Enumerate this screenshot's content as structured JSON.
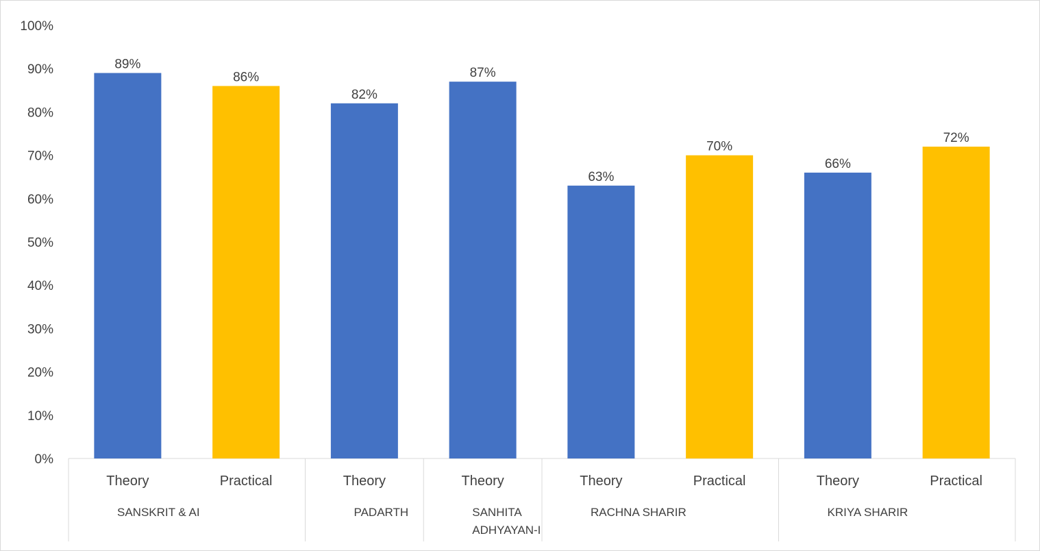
{
  "chart_data": {
    "type": "bar",
    "ylim": [
      0,
      100
    ],
    "y_ticks": [
      "0%",
      "10%",
      "20%",
      "30%",
      "40%",
      "50%",
      "60%",
      "70%",
      "80%",
      "90%",
      "100%"
    ],
    "grid": false,
    "legend": "none",
    "groups": [
      {
        "label_lines": [
          "SANSKRIT & AI"
        ],
        "bars": [
          {
            "category": "Theory",
            "value": 89,
            "label": "89%",
            "color": "#4472C4"
          },
          {
            "category": "Practical",
            "value": 86,
            "label": "86%",
            "color": "#FFC000"
          }
        ]
      },
      {
        "label_lines": [
          "PADARTH"
        ],
        "bars": [
          {
            "category": "Theory",
            "value": 82,
            "label": "82%",
            "color": "#4472C4"
          }
        ]
      },
      {
        "label_lines": [
          "SANHITA",
          "ADHYAYAN-I"
        ],
        "bars": [
          {
            "category": "Theory",
            "value": 87,
            "label": "87%",
            "color": "#4472C4"
          }
        ]
      },
      {
        "label_lines": [
          "RACHNA SHARIR"
        ],
        "bars": [
          {
            "category": "Theory",
            "value": 63,
            "label": "63%",
            "color": "#4472C4"
          },
          {
            "category": "Practical",
            "value": 70,
            "label": "70%",
            "color": "#FFC000"
          }
        ]
      },
      {
        "label_lines": [
          "KRIYA SHARIR"
        ],
        "bars": [
          {
            "category": "Theory",
            "value": 66,
            "label": "66%",
            "color": "#4472C4"
          },
          {
            "category": "Practical",
            "value": 72,
            "label": "72%",
            "color": "#FFC000"
          }
        ]
      }
    ]
  }
}
